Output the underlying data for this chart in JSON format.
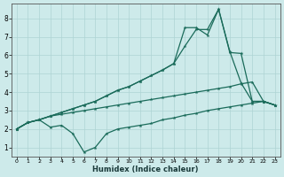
{
  "xlabel": "Humidex (Indice chaleur)",
  "bg_color": "#cdeaea",
  "line_color": "#1a6b5a",
  "grid_color": "#aed4d4",
  "xlim": [
    -0.5,
    23.5
  ],
  "ylim": [
    0.5,
    8.8
  ],
  "xticks": [
    0,
    1,
    2,
    3,
    4,
    5,
    6,
    7,
    8,
    9,
    10,
    11,
    12,
    13,
    14,
    15,
    16,
    17,
    18,
    19,
    20,
    21,
    22,
    23
  ],
  "yticks": [
    1,
    2,
    3,
    4,
    5,
    6,
    7,
    8
  ],
  "line1_x": [
    0,
    1,
    2,
    3,
    4,
    5,
    6,
    7,
    8,
    9,
    10,
    11,
    12,
    13,
    14,
    15,
    16,
    17,
    18,
    19,
    20,
    21,
    22,
    23
  ],
  "line1_y": [
    2.0,
    2.35,
    2.5,
    2.1,
    2.2,
    1.75,
    0.75,
    1.0,
    1.75,
    2.0,
    2.1,
    2.2,
    2.3,
    2.5,
    2.6,
    2.75,
    2.85,
    3.0,
    3.1,
    3.2,
    3.3,
    3.4,
    3.5,
    3.3
  ],
  "line2_x": [
    0,
    1,
    2,
    3,
    4,
    5,
    6,
    7,
    8,
    9,
    10,
    11,
    12,
    13,
    14,
    15,
    16,
    17,
    18,
    19,
    20,
    21,
    22,
    23
  ],
  "line2_y": [
    2.0,
    2.35,
    2.5,
    2.7,
    2.8,
    2.9,
    3.0,
    3.1,
    3.2,
    3.3,
    3.4,
    3.5,
    3.6,
    3.7,
    3.8,
    3.9,
    4.0,
    4.1,
    4.2,
    4.3,
    4.45,
    4.55,
    3.5,
    3.3
  ],
  "line3_x": [
    0,
    1,
    2,
    3,
    4,
    5,
    6,
    7,
    8,
    9,
    10,
    11,
    12,
    13,
    14,
    15,
    16,
    17,
    18,
    19,
    20,
    21,
    22,
    23
  ],
  "line3_y": [
    2.0,
    2.35,
    2.5,
    2.7,
    2.9,
    3.1,
    3.3,
    3.5,
    3.8,
    4.1,
    4.3,
    4.6,
    4.9,
    5.2,
    5.55,
    6.5,
    7.4,
    7.4,
    8.5,
    6.2,
    4.5,
    3.5,
    3.5,
    3.3
  ],
  "line4_x": [
    0,
    1,
    2,
    3,
    4,
    5,
    6,
    7,
    8,
    9,
    10,
    11,
    12,
    13,
    14,
    15,
    16,
    17,
    18,
    19,
    20,
    21,
    22,
    23
  ],
  "line4_y": [
    2.0,
    2.35,
    2.5,
    2.7,
    2.9,
    3.1,
    3.3,
    3.5,
    3.8,
    4.1,
    4.3,
    4.6,
    4.9,
    5.2,
    5.55,
    7.5,
    7.5,
    7.1,
    8.5,
    6.15,
    6.1,
    3.5,
    3.5,
    3.3
  ]
}
